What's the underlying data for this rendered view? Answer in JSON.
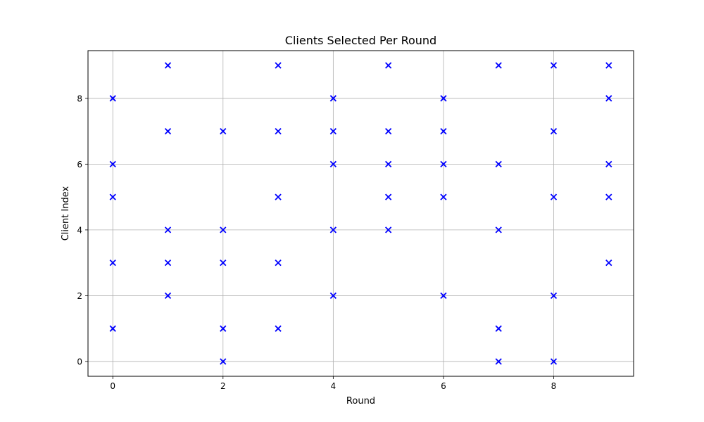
{
  "chart_data": {
    "type": "scatter",
    "title": "Clients Selected Per Round",
    "xlabel": "Round",
    "ylabel": "Client Index",
    "xlim": [
      -0.45,
      9.45
    ],
    "ylim": [
      -0.45,
      9.45
    ],
    "xticks": [
      0,
      2,
      4,
      6,
      8
    ],
    "yticks": [
      0,
      2,
      4,
      6,
      8
    ],
    "grid": true,
    "marker": "x",
    "marker_color": "#0000ff",
    "grid_color": "#b0b0b0",
    "rounds": [
      {
        "round": 0,
        "clients": [
          8,
          6,
          5,
          3,
          1
        ]
      },
      {
        "round": 1,
        "clients": [
          9,
          7,
          4,
          3,
          2
        ]
      },
      {
        "round": 2,
        "clients": [
          7,
          4,
          3,
          1,
          0
        ]
      },
      {
        "round": 3,
        "clients": [
          9,
          7,
          5,
          3,
          1
        ]
      },
      {
        "round": 4,
        "clients": [
          8,
          7,
          6,
          4,
          2
        ]
      },
      {
        "round": 5,
        "clients": [
          9,
          7,
          6,
          5,
          4
        ]
      },
      {
        "round": 6,
        "clients": [
          8,
          7,
          6,
          5,
          2
        ]
      },
      {
        "round": 7,
        "clients": [
          9,
          6,
          4,
          1,
          0
        ]
      },
      {
        "round": 8,
        "clients": [
          9,
          7,
          5,
          2,
          0
        ]
      },
      {
        "round": 9,
        "clients": [
          9,
          8,
          6,
          5,
          3
        ]
      }
    ]
  }
}
